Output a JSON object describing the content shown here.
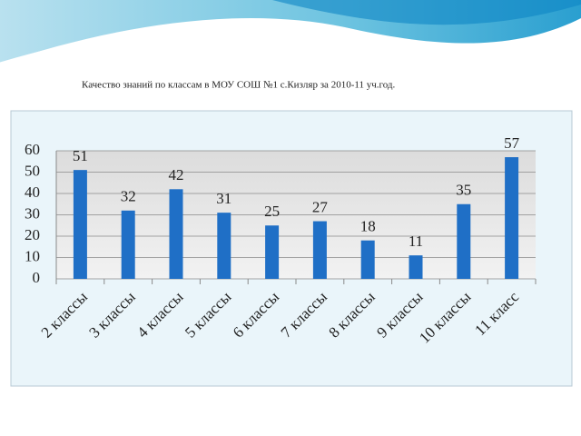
{
  "chart_data": {
    "type": "bar",
    "title": "Качество знаний по классам  в  МОУ СОШ №1 с.Кизляр за 2010-11 уч.год.",
    "categories": [
      "2 классы",
      "3 классы",
      "4 классы",
      "5 классы",
      "6 классы",
      "7 классы",
      "8 классы",
      "9 классы",
      "10 классы",
      "11 класс"
    ],
    "values": [
      51,
      32,
      42,
      31,
      25,
      27,
      18,
      11,
      35,
      57
    ],
    "color": "#1f6fc6",
    "ylim": [
      0,
      60
    ],
    "yticks": [
      0,
      10,
      20,
      30,
      40,
      50,
      60
    ],
    "grid": true
  }
}
